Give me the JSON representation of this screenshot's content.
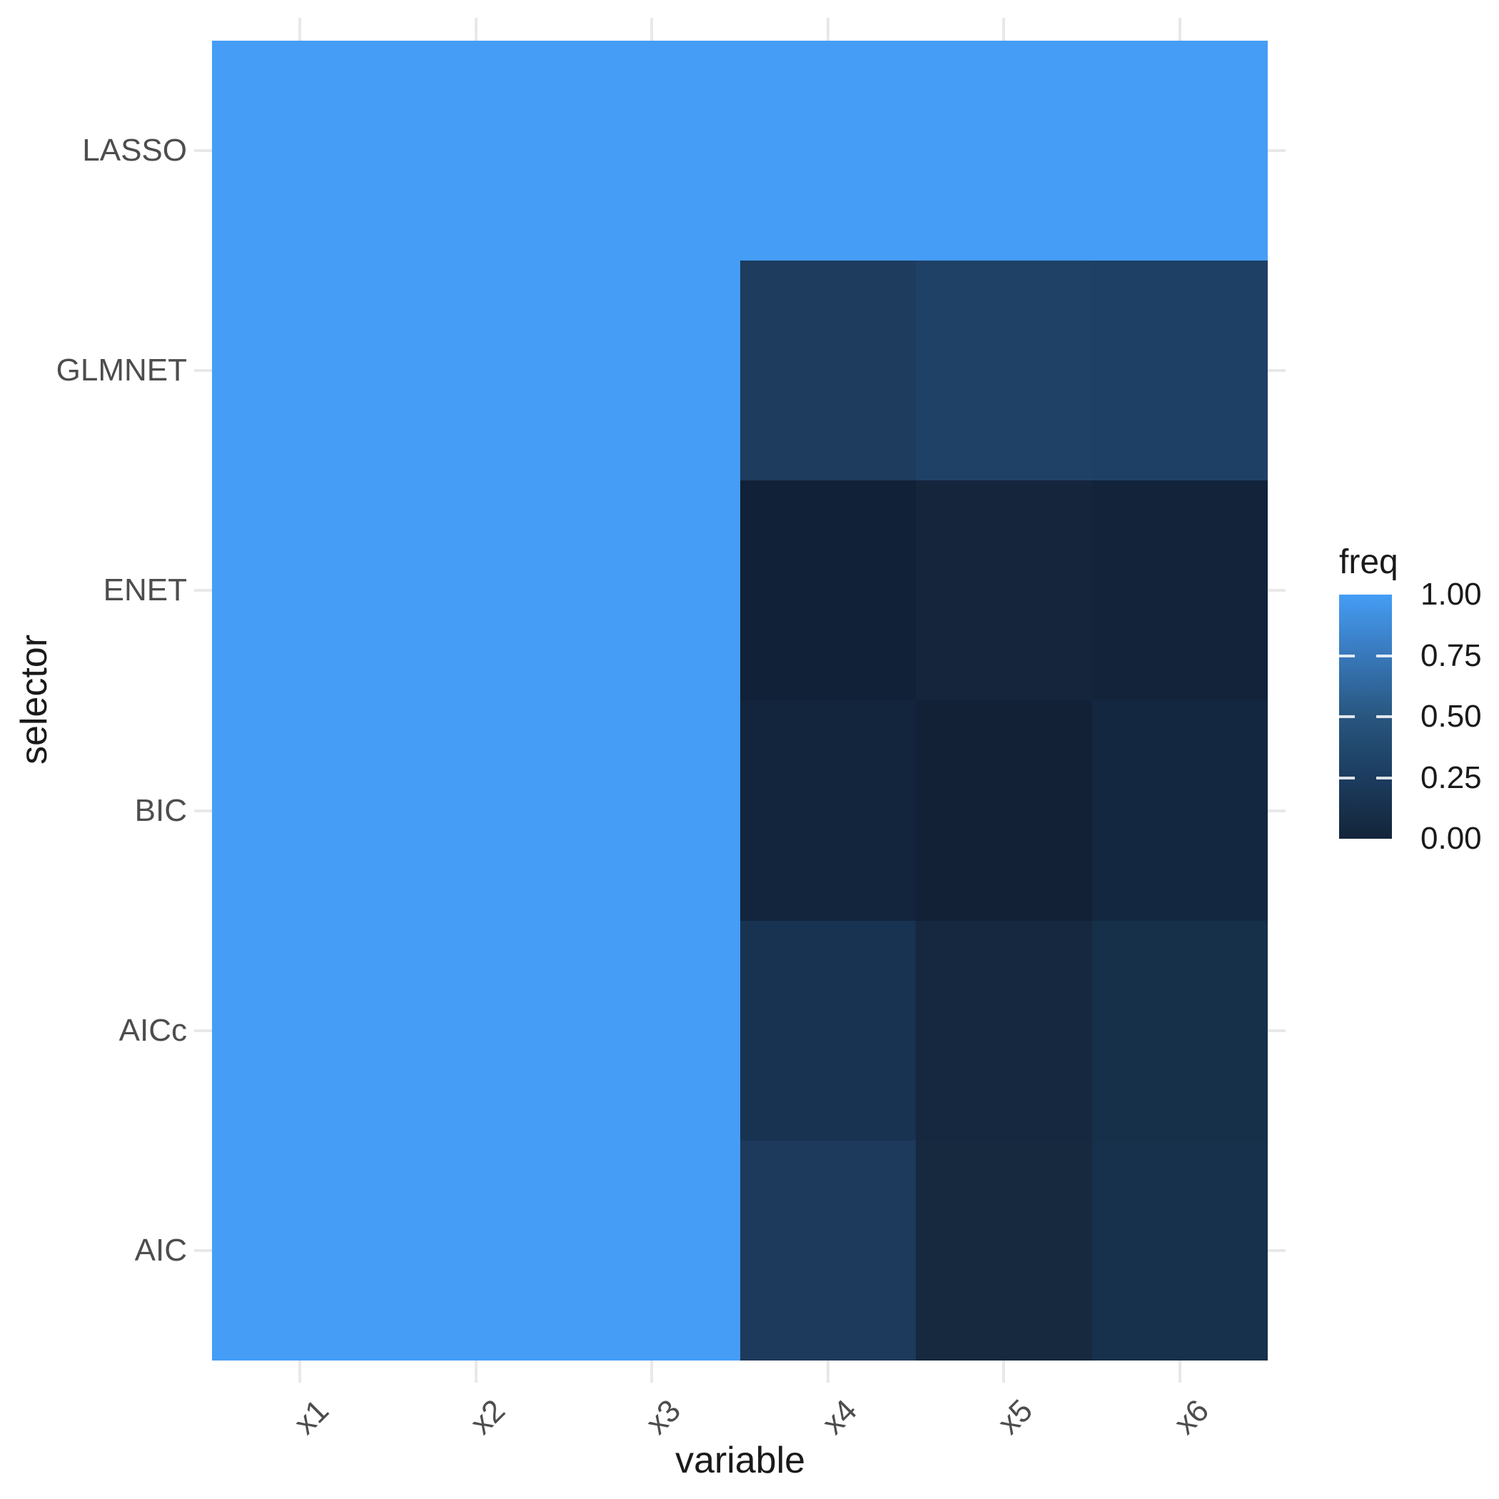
{
  "figure": {
    "background": "#ffffff",
    "axis": {
      "x_title": "variable",
      "y_title": "selector",
      "tick_label_color": "#4d4d4d",
      "title_color": "#1a1a1a",
      "gridline_color": "#e8e8e8"
    },
    "legend": {
      "title": "freq",
      "labels": [
        "1.00",
        "0.75",
        "0.50",
        "0.25",
        "0.00"
      ],
      "gradient_stops": [
        "#459df5",
        "#3878ba",
        "#28567f",
        "#1c3c5f",
        "#132539"
      ],
      "position": "right"
    }
  },
  "chart_data": {
    "type": "heatmap",
    "title": "",
    "xlabel": "variable",
    "ylabel": "selector",
    "x": [
      "x1",
      "x2",
      "x3",
      "x4",
      "x5",
      "x6"
    ],
    "y_top_to_bottom": [
      "LASSO",
      "GLMNET",
      "ENET",
      "BIC",
      "AICc",
      "AIC"
    ],
    "fill_variable": "freq",
    "fill_limits": [
      0.0,
      1.0
    ],
    "legend_position": "right",
    "grid": "minimal-theme stubs at axis breaks",
    "series": [
      {
        "name": "LASSO",
        "values": [
          1.0,
          1.0,
          1.0,
          1.0,
          1.0,
          1.0
        ]
      },
      {
        "name": "GLMNET",
        "values": [
          1.0,
          1.0,
          1.0,
          0.24,
          0.27,
          0.26
        ]
      },
      {
        "name": "ENET",
        "values": [
          1.0,
          1.0,
          1.0,
          0.02,
          0.05,
          0.03
        ]
      },
      {
        "name": "BIC",
        "values": [
          1.0,
          1.0,
          1.0,
          0.05,
          0.02,
          0.06
        ]
      },
      {
        "name": "AICc",
        "values": [
          1.0,
          1.0,
          1.0,
          0.14,
          0.06,
          0.12
        ]
      },
      {
        "name": "AIC",
        "values": [
          1.0,
          1.0,
          1.0,
          0.2,
          0.07,
          0.12
        ]
      }
    ],
    "cell_colors": [
      [
        "#459df5",
        "#459df5",
        "#459df5",
        "#459df5",
        "#459df5",
        "#459df5"
      ],
      [
        "#459df5",
        "#459df5",
        "#459df5",
        "#1d3c5e",
        "#204166",
        "#1f4065"
      ],
      [
        "#459df5",
        "#459df5",
        "#459df5",
        "#112137",
        "#15253c",
        "#12233a"
      ],
      [
        "#459df5",
        "#459df5",
        "#459df5",
        "#13253d",
        "#122136",
        "#142741"
      ],
      [
        "#459df5",
        "#459df5",
        "#459df5",
        "#183351",
        "#15283f",
        "#17304a"
      ],
      [
        "#459df5",
        "#459df5",
        "#459df5",
        "#1d3a5c",
        "#16293f",
        "#17304b"
      ]
    ]
  }
}
